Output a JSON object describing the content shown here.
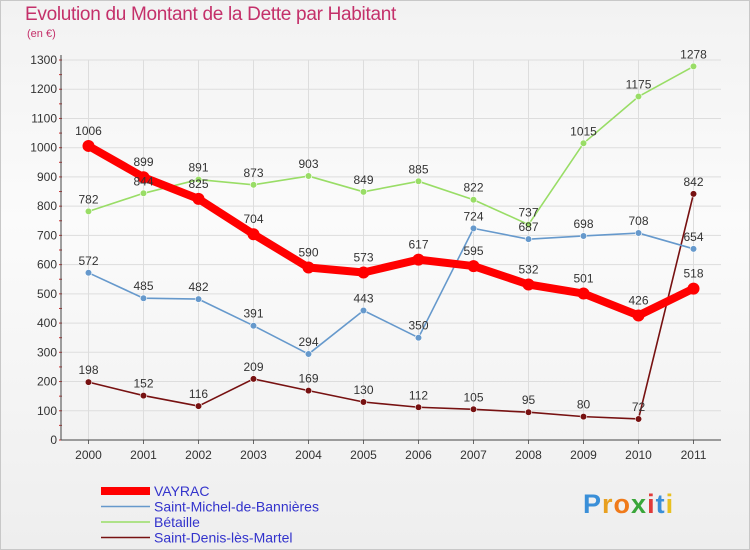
{
  "chart_data": {
    "type": "line",
    "title": "Evolution du Montant de la Dette par Habitant",
    "unit_label": "(en €)",
    "x": [
      "2000",
      "2001",
      "2002",
      "2003",
      "2004",
      "2005",
      "2006",
      "2007",
      "2008",
      "2009",
      "2010",
      "2011"
    ],
    "ylim": [
      0,
      1300
    ],
    "yticks": [
      0,
      100,
      200,
      300,
      400,
      500,
      600,
      700,
      800,
      900,
      1000,
      1100,
      1200,
      1300
    ],
    "grid": true,
    "legend_position": "bottom-left",
    "series": [
      {
        "name": "VAYRAC",
        "color": "#ff0000",
        "values": [
          1006,
          899,
          825,
          704,
          590,
          573,
          617,
          595,
          532,
          501,
          426,
          518
        ]
      },
      {
        "name": "Saint-Michel-de-Bannières",
        "color": "#6699cc",
        "values": [
          572,
          485,
          482,
          391,
          294,
          443,
          350,
          724,
          687,
          698,
          708,
          654
        ]
      },
      {
        "name": "Bétaille",
        "color": "#99dd66",
        "values": [
          782,
          844,
          891,
          873,
          903,
          849,
          885,
          822,
          737,
          1015,
          1175,
          1278
        ]
      },
      {
        "name": "Saint-Denis-lès-Martel",
        "color": "#771111",
        "values": [
          198,
          152,
          116,
          209,
          169,
          130,
          112,
          105,
          95,
          80,
          72,
          842
        ]
      }
    ]
  },
  "logo": {
    "letters": [
      "P",
      "r",
      "o",
      "x",
      "i",
      "t",
      "i"
    ],
    "colors": [
      "#3a8fd8",
      "#e8a020",
      "#f07a1a",
      "#3aa63a",
      "#e03a3a",
      "#3a8fd8",
      "#e8c020"
    ]
  }
}
